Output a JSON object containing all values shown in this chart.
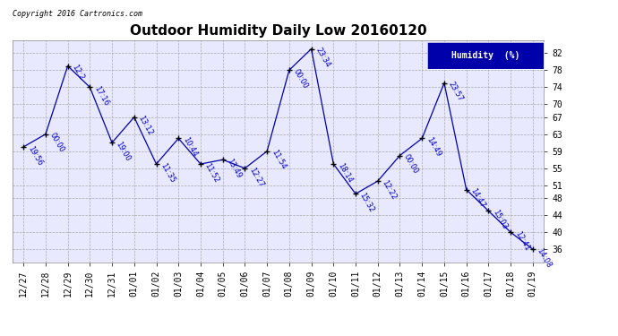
{
  "title": "Outdoor Humidity Daily Low 20160120",
  "copyright_text": "Copyright 2016 Cartronics.com",
  "legend_label": "Humidity  (%)",
  "x_labels": [
    "12/27",
    "12/28",
    "12/29",
    "12/30",
    "12/31",
    "01/01",
    "01/02",
    "01/03",
    "01/04",
    "01/05",
    "01/06",
    "01/07",
    "01/08",
    "01/09",
    "01/10",
    "01/11",
    "01/12",
    "01/13",
    "01/14",
    "01/15",
    "01/16",
    "01/17",
    "01/18",
    "01/19"
  ],
  "y_values": [
    60,
    63,
    79,
    74,
    61,
    67,
    56,
    62,
    56,
    57,
    55,
    59,
    78,
    83,
    56,
    49,
    52,
    58,
    62,
    75,
    50,
    45,
    40,
    36
  ],
  "time_labels": [
    "19:56",
    "00:00",
    "12:2",
    "17:16",
    "19:00",
    "13:12",
    "11:35",
    "10:44",
    "11:52",
    "13:49",
    "12:27",
    "11:54",
    "00:00",
    "23:34",
    "18:14",
    "15:32",
    "12:22",
    "00:00",
    "14:49",
    "23:57",
    "14:47",
    "15:03",
    "12:41",
    "14:08"
  ],
  "line_color": "#0000AA",
  "marker_color": "#000000",
  "fig_bg_color": "#FFFFFF",
  "plot_bg_color": "#E8E8FF",
  "title_color": "#000000",
  "label_color": "#0000CC",
  "grid_color": "#AAAAAA",
  "yticks": [
    36,
    40,
    44,
    48,
    51,
    55,
    59,
    63,
    67,
    70,
    74,
    78,
    82
  ],
  "ylim": [
    33,
    85
  ],
  "xlim": [
    -0.5,
    23.5
  ],
  "legend_bg": "#0000AA",
  "legend_text_color": "#FFFFFF",
  "title_fontsize": 11,
  "tick_fontsize": 7,
  "annot_fontsize": 6,
  "copyright_fontsize": 6,
  "legend_fontsize": 7
}
